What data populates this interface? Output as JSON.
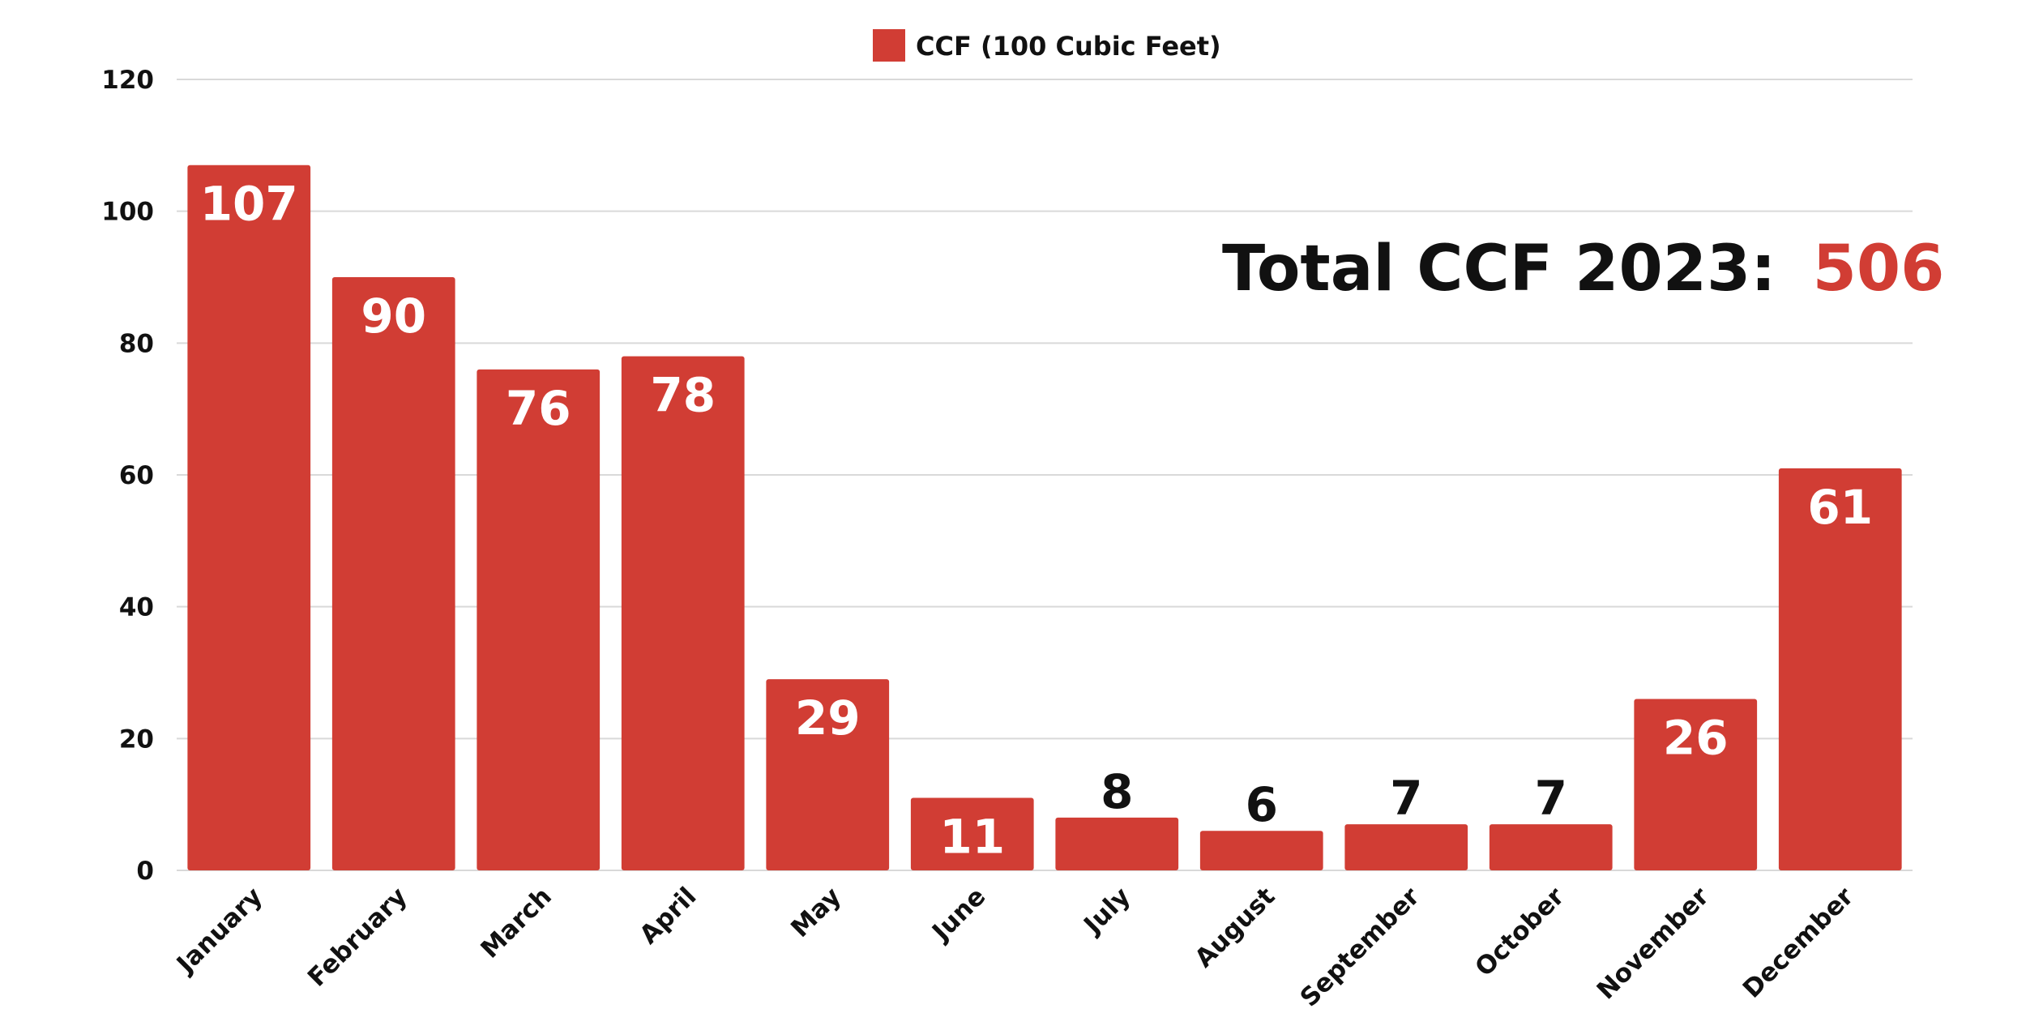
{
  "chart_data": {
    "type": "bar",
    "categories": [
      "January",
      "February",
      "March",
      "April",
      "May",
      "June",
      "July",
      "August",
      "September",
      "October",
      "November",
      "December"
    ],
    "series": [
      {
        "name": "CCF (100 Cubic Feet)",
        "values": [
          107,
          90,
          76,
          78,
          29,
          11,
          8,
          6,
          7,
          7,
          26,
          61
        ]
      }
    ],
    "ylim": [
      0,
      120
    ],
    "yticks": [
      "0",
      "20",
      "40",
      "60",
      "80",
      "100",
      "120"
    ],
    "legend": {
      "label": "CCF (100 Cubic Feet)",
      "position": "top-center"
    },
    "annotation": {
      "label": "Total CCF 2023:",
      "value": "506"
    },
    "grid": true
  },
  "colors": {
    "bar": "#d13d34",
    "label_inside": "#ffffff",
    "label_outside": "#111111",
    "accent": "#d13d34"
  }
}
